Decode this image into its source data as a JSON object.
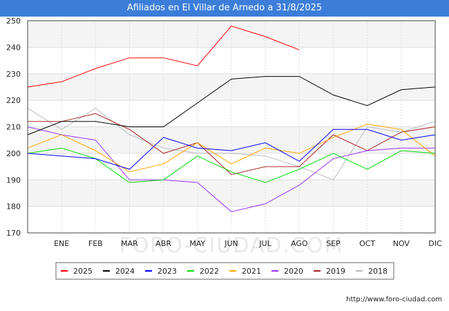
{
  "title": "Afiliados en El Villar de Arnedo a 31/8/2025",
  "footer": "http://www.foro-ciudad.com",
  "watermark": "FORO-CIUDAD.COM",
  "chart_data": {
    "type": "line",
    "title": "Afiliados en El Villar de Arnedo a 31/8/2025",
    "categories": [
      "",
      "ENE",
      "FEB",
      "MAR",
      "ABR",
      "MAY",
      "JUN",
      "JUL",
      "AGO",
      "SEP",
      "OCT",
      "NOV",
      "DIC"
    ],
    "ylim": [
      170,
      250
    ],
    "yticks": [
      170,
      180,
      190,
      200,
      210,
      220,
      230,
      240,
      250
    ],
    "grid": true,
    "legend_position": "bottom",
    "series": [
      {
        "name": "2025",
        "color": "#ff0000",
        "values": [
          225,
          227,
          232,
          236,
          236,
          233,
          248,
          244,
          239,
          null,
          null,
          null,
          null
        ]
      },
      {
        "name": "2024",
        "color": "#000000",
        "values": [
          207,
          212,
          212,
          210,
          210,
          219,
          228,
          229,
          229,
          222,
          218,
          224,
          225
        ]
      },
      {
        "name": "2023",
        "color": "#0000ff",
        "values": [
          200,
          199,
          198,
          194,
          206,
          202,
          201,
          204,
          197,
          209,
          209,
          205,
          207
        ]
      },
      {
        "name": "2022",
        "color": "#00dd00",
        "values": [
          200,
          202,
          198,
          189,
          190,
          199,
          193,
          189,
          194,
          200,
          194,
          201,
          200
        ]
      },
      {
        "name": "2021",
        "color": "#ffa500",
        "values": [
          202,
          207,
          201,
          193,
          196,
          204,
          196,
          202,
          200,
          206,
          211,
          209,
          199
        ]
      },
      {
        "name": "2020",
        "color": "#9933ff",
        "values": [
          210,
          207,
          205,
          190,
          190,
          189,
          178,
          181,
          188,
          198,
          201,
          202,
          202
        ]
      },
      {
        "name": "2019",
        "color": "#aa2222",
        "values": [
          212,
          212,
          215,
          209,
          200,
          204,
          192,
          195,
          195,
          207,
          201,
          208,
          210
        ]
      },
      {
        "name": "2018",
        "color": "#bbbbbb",
        "values": [
          217,
          209,
          217,
          207,
          202,
          200,
          200,
          199,
          195,
          190,
          210,
          208,
          212
        ]
      }
    ]
  }
}
